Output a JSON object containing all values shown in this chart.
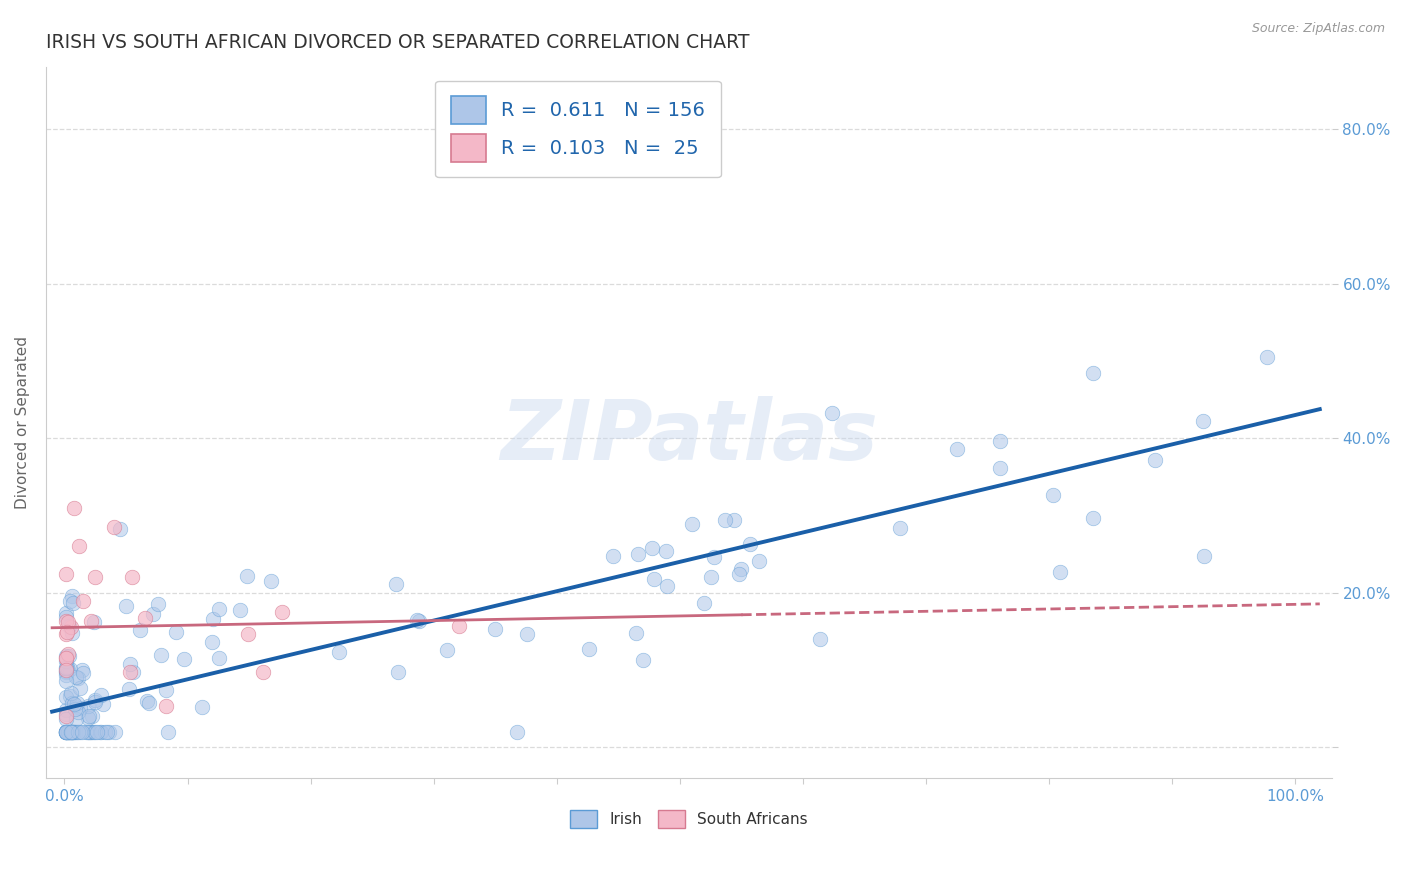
{
  "title": "IRISH VS SOUTH AFRICAN DIVORCED OR SEPARATED CORRELATION CHART",
  "source_text": "Source: ZipAtlas.com",
  "ylabel": "Divorced or Separated",
  "irish_R": 0.611,
  "irish_N": 156,
  "sa_R": 0.103,
  "sa_N": 25,
  "irish_color": "#aec6e8",
  "irish_edge_color": "#5b9bd5",
  "sa_color": "#f4b8c8",
  "sa_edge_color": "#d67a90",
  "irish_line_color": "#1a5fa8",
  "sa_line_color": "#c8687e",
  "watermark": "ZIPatlas",
  "irish_slope": 0.38,
  "irish_intercept": 0.05,
  "sa_slope": 0.03,
  "sa_intercept": 0.155,
  "background_color": "#ffffff",
  "grid_color": "#cccccc",
  "title_color": "#333333",
  "tick_color": "#5b9bd5",
  "right_tick_color": "#5b9bd5"
}
